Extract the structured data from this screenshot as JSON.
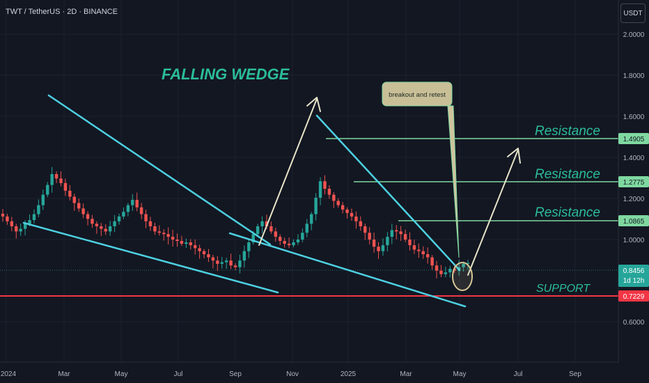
{
  "header": {
    "symbol_title": "TWT / TetherUS · 2D · BINANCE",
    "currency_button": "USDT"
  },
  "colors": {
    "background": "#131722",
    "up": "#26a69a",
    "down": "#ef5350",
    "trendline": "#4dd0e1",
    "resistance": "#7fd8a0",
    "support": "#f23645",
    "arrow": "#e6e4c8",
    "label_green": "#2bbd9a"
  },
  "chart_data": {
    "type": "candlestick",
    "ylim": [
      0.55,
      2.12
    ],
    "y_ticks": [
      "2.0000",
      "1.8000",
      "1.6000",
      "1.4000",
      "1.2000",
      "1.0000",
      "0.6000"
    ],
    "x_ticks": [
      "2024",
      "Mar",
      "May",
      "Jul",
      "Sep",
      "Nov",
      "2025",
      "Mar",
      "May",
      "Jul",
      "Sep"
    ],
    "current_price": "0.8456",
    "countdown": "1d 12h",
    "support_price": "0.7229",
    "resistance_levels": [
      {
        "label": "Resistance",
        "price": "1.4905"
      },
      {
        "label": "Resistance",
        "price": "1.2775"
      },
      {
        "label": "Resistance",
        "price": "1.0865"
      }
    ],
    "annotations": {
      "pattern": "FALLING WEDGE",
      "callout": "breakout and retest",
      "support": "SUPPORT"
    },
    "closes": [
      1.18,
      1.14,
      1.1,
      1.06,
      1.08,
      1.12,
      1.15,
      1.2,
      1.28,
      1.38,
      1.48,
      1.6,
      1.55,
      1.5,
      1.42,
      1.36,
      1.3,
      1.25,
      1.2,
      1.16,
      1.12,
      1.1,
      1.08,
      1.06,
      1.1,
      1.14,
      1.18,
      1.22,
      1.28,
      1.33,
      1.26,
      1.2,
      1.14,
      1.1,
      1.06,
      1.05,
      1.04,
      1.02,
      1.0,
      0.99,
      0.97,
      0.98,
      0.96,
      0.94,
      0.92,
      0.9,
      0.88,
      0.86,
      0.84,
      0.85,
      0.86,
      0.83,
      0.82,
      0.86,
      0.92,
      0.98,
      1.04,
      1.1,
      1.14,
      1.1,
      1.06,
      1.02,
      0.99,
      0.97,
      0.96,
      0.98,
      1.0,
      1.05,
      1.12,
      1.2,
      1.35,
      1.52,
      1.44,
      1.38,
      1.32,
      1.28,
      1.24,
      1.21,
      1.18,
      1.14,
      1.1,
      1.05,
      1.0,
      0.95,
      0.92,
      0.96,
      1.02,
      1.07,
      1.06,
      1.04,
      1.0,
      0.96,
      0.93,
      0.92,
      0.9,
      0.88,
      0.83,
      0.8,
      0.78,
      0.79,
      0.81,
      0.8,
      0.82,
      0.84,
      0.8456
    ]
  }
}
